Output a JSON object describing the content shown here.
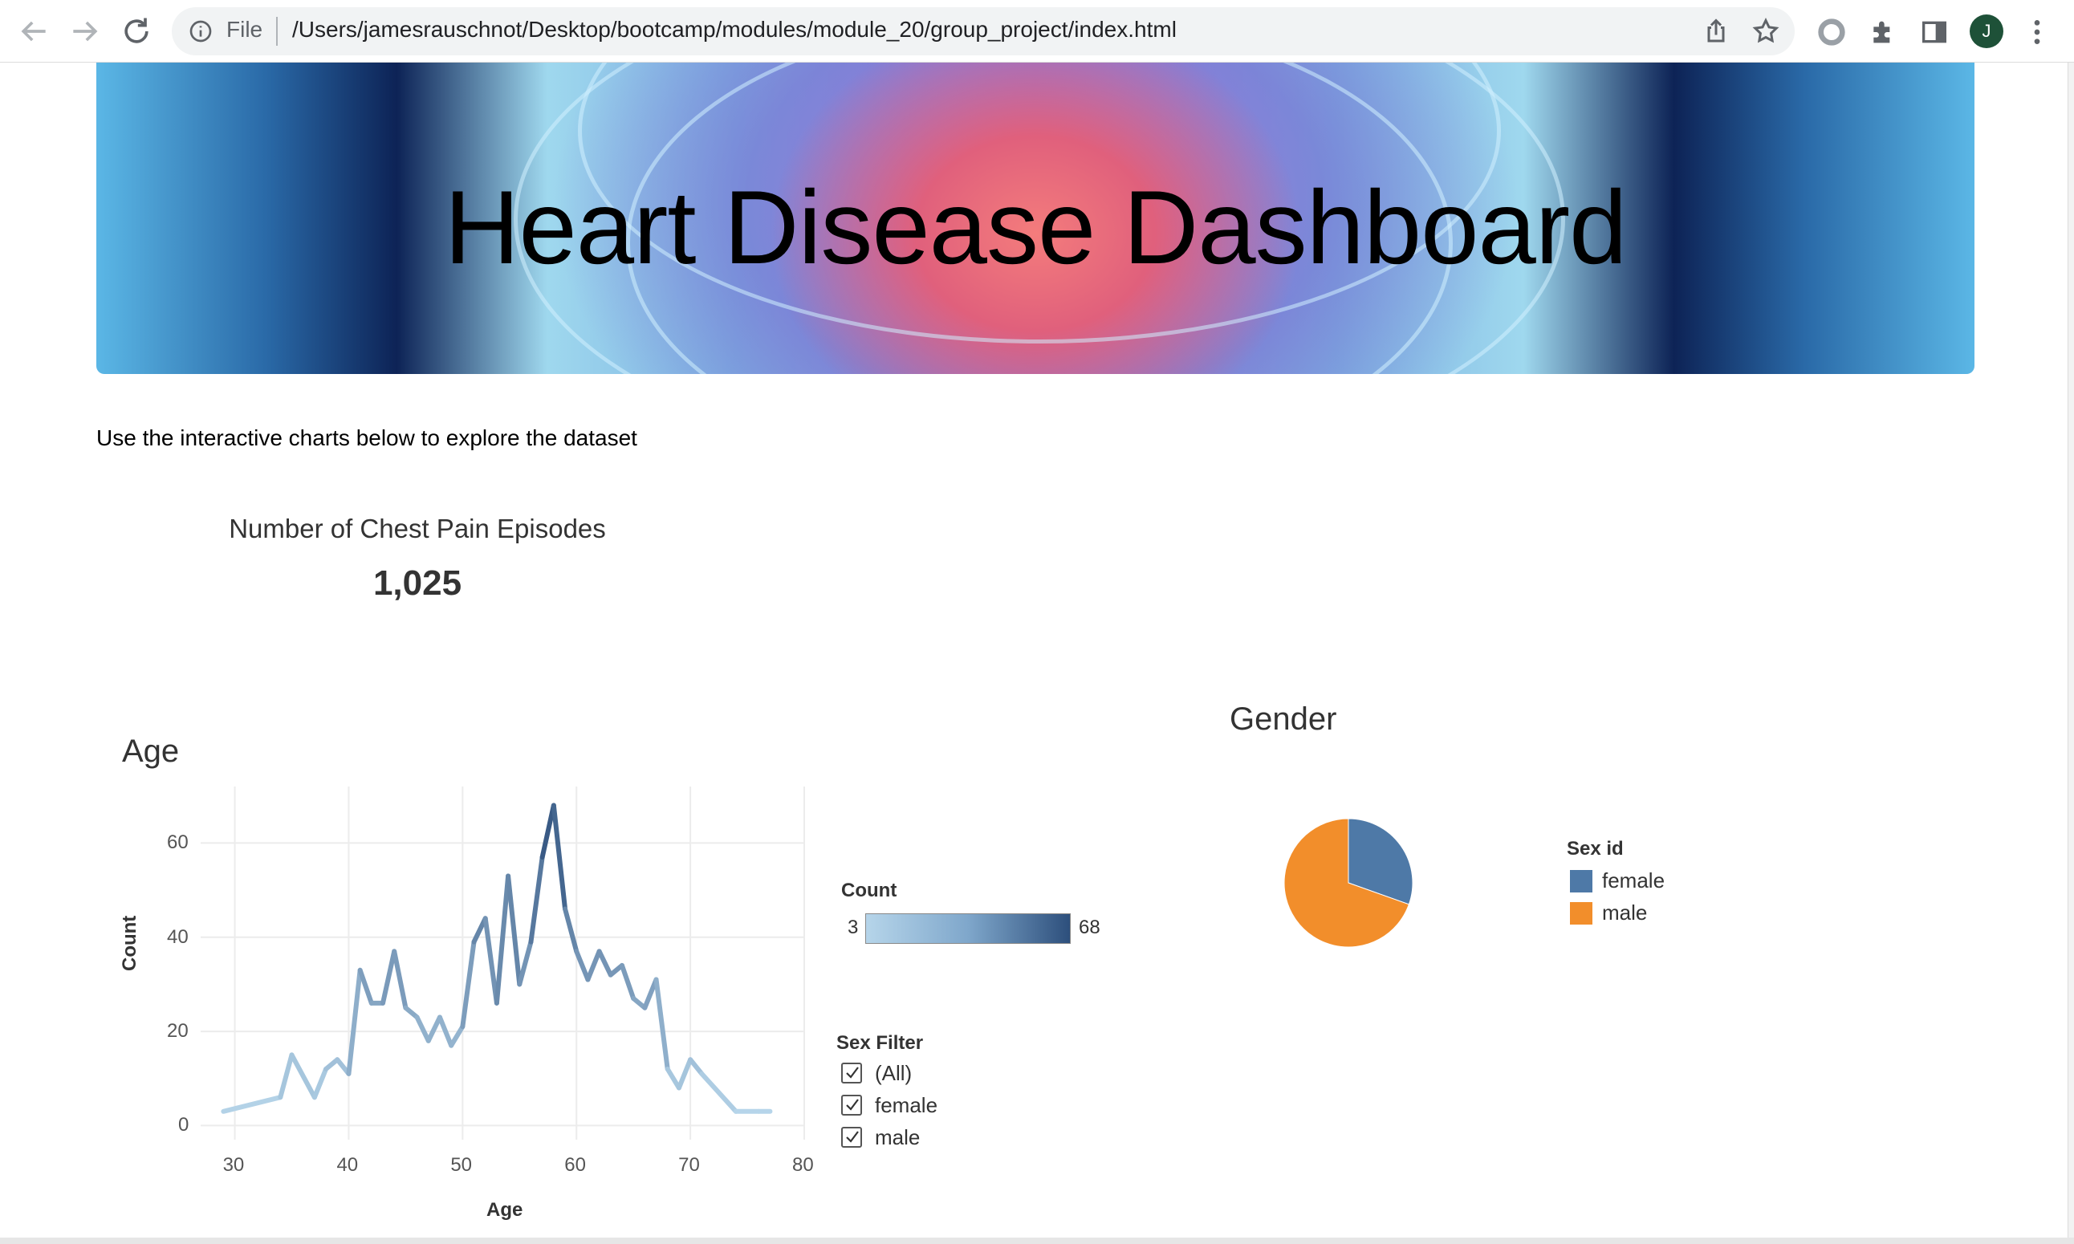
{
  "browser": {
    "back_icon": "arrow-left-icon",
    "forward_icon": "arrow-right-icon",
    "reload_icon": "reload-icon",
    "scheme_label": "File",
    "url": "/Users/jamesrauschnot/Desktop/bootcamp/modules/module_20/group_project/index.html",
    "avatar_initial": "J"
  },
  "page": {
    "banner_title": "Heart Disease Dashboard",
    "intro": "Use the interactive charts below to explore the dataset"
  },
  "kpi": {
    "title": "Number of Chest Pain Episodes",
    "value": "1,025"
  },
  "age_chart": {
    "title": "Age",
    "count_legend_title": "Count",
    "count_min_label": "3",
    "count_max_label": "68",
    "ramp_colors": [
      "#b6d5ea",
      "#2d4f7c"
    ]
  },
  "sex_filter": {
    "title": "Sex Filter",
    "options": [
      {
        "label": "(All)",
        "checked": true
      },
      {
        "label": "female",
        "checked": true
      },
      {
        "label": "male",
        "checked": true
      }
    ]
  },
  "gender_chart": {
    "title": "Gender",
    "legend_title": "Sex id",
    "legend": [
      {
        "label": "female",
        "color": "#4e79a7"
      },
      {
        "label": "male",
        "color": "#f28e2b"
      }
    ]
  },
  "chart_data": [
    {
      "type": "line",
      "title": "Age",
      "xlabel": "Age",
      "ylabel": "Count",
      "xlim": [
        27,
        80
      ],
      "ylim": [
        -3,
        72
      ],
      "xticks": [
        "30",
        "40",
        "50",
        "60",
        "70",
        "80"
      ],
      "yticks": [
        "0",
        "20",
        "40",
        "60"
      ],
      "grid": true,
      "color_scale": {
        "min": 3,
        "max": 68,
        "colors": [
          "#b6d5ea",
          "#2d4f7c"
        ]
      },
      "x": [
        29,
        34,
        35,
        37,
        38,
        39,
        40,
        41,
        42,
        43,
        44,
        45,
        46,
        47,
        48,
        49,
        50,
        51,
        52,
        53,
        54,
        55,
        56,
        57,
        58,
        59,
        60,
        61,
        62,
        63,
        64,
        65,
        66,
        67,
        68,
        69,
        70,
        71,
        74,
        76,
        77
      ],
      "values": [
        3,
        6,
        15,
        6,
        12,
        14,
        11,
        33,
        26,
        26,
        37,
        25,
        23,
        18,
        23,
        17,
        21,
        39,
        44,
        26,
        53,
        30,
        39,
        57,
        68,
        46,
        37,
        31,
        37,
        32,
        34,
        27,
        25,
        31,
        12,
        8,
        14,
        11,
        3,
        3,
        3
      ]
    },
    {
      "type": "pie",
      "title": "Gender",
      "legend_title": "Sex id",
      "labels": [
        "female",
        "male"
      ],
      "values": [
        312,
        713
      ],
      "colors": [
        "#4e79a7",
        "#f28e2b"
      ],
      "legend": "right"
    }
  ]
}
